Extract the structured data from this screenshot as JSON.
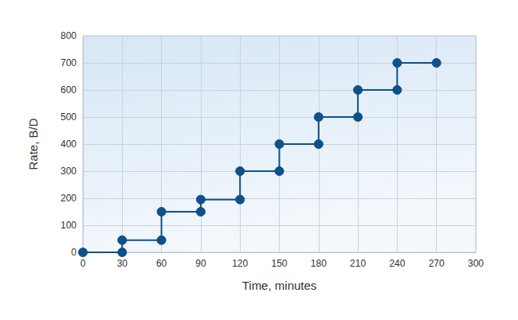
{
  "chart_data": {
    "type": "line",
    "x_label": "Time, minutes",
    "y_label": "Rate, B/D",
    "x": [
      0,
      30,
      30,
      60,
      60,
      90,
      90,
      120,
      120,
      150,
      150,
      180,
      180,
      210,
      210,
      240,
      240,
      270
    ],
    "values": [
      0,
      0,
      45,
      45,
      150,
      150,
      195,
      195,
      300,
      300,
      400,
      400,
      500,
      500,
      600,
      600,
      700,
      700
    ],
    "color": "#0f5189",
    "marker": "circle",
    "line_style": "solid",
    "xlim": [
      0,
      300
    ],
    "xticks": [
      0,
      30,
      60,
      90,
      120,
      150,
      180,
      210,
      240,
      270,
      300
    ],
    "ylim": [
      0,
      800
    ],
    "yticks": [
      0,
      100,
      200,
      300,
      400,
      500,
      600,
      700,
      800
    ],
    "grid": true
  }
}
